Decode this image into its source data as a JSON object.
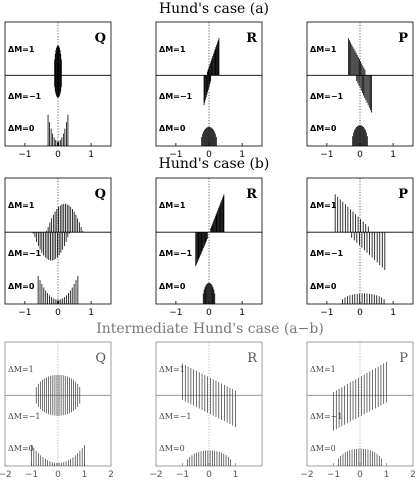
{
  "figure": {
    "row_titles": [
      "Hund's case (a)",
      "Hund's case (b)",
      "Intermediate Hund's case (a−b)"
    ],
    "dm_labels": [
      "ΔM=1",
      "ΔM=−1",
      "ΔM=0"
    ]
  },
  "chart_data": [
    {
      "type": "bar",
      "row": 0,
      "col": 0,
      "branch": "Q",
      "xlim": [
        -1.6,
        1.6
      ],
      "xticks": [
        "−1",
        "0",
        "1"
      ],
      "xtick_values": [
        -1,
        0,
        1
      ],
      "series": [
        {
          "name": "ΔM=1",
          "x_range": [
            -0.12,
            0.12
          ],
          "n_lines": 14,
          "shape": "ellipse_top",
          "amplitude": 0.8
        },
        {
          "name": "ΔM=−1",
          "x_range": [
            -0.12,
            0.12
          ],
          "n_lines": 14,
          "shape": "ellipse_bottom",
          "amplitude": 0.6
        },
        {
          "name": "ΔM=0",
          "x_range": [
            -0.3,
            0.3
          ],
          "n_lines": 14,
          "shape": "u_shape",
          "amplitude": 0.9
        }
      ]
    },
    {
      "type": "bar",
      "row": 0,
      "col": 1,
      "branch": "R",
      "xlim": [
        -1.6,
        1.6
      ],
      "xticks": [
        "−1",
        "0",
        "1"
      ],
      "xtick_values": [
        -1,
        0,
        1
      ],
      "series": [
        {
          "name": "ΔM=1",
          "x_range": [
            -0.05,
            0.3
          ],
          "n_lines": 16,
          "shape": "ramp_up",
          "amplitude": 1.0
        },
        {
          "name": "ΔM=−1",
          "x_range": [
            -0.15,
            0.05
          ],
          "n_lines": 10,
          "shape": "ramp_down",
          "amplitude": 0.8
        },
        {
          "name": "ΔM=0",
          "x_range": [
            -0.25,
            0.25
          ],
          "n_lines": 18,
          "shape": "arch",
          "amplitude": 0.55
        }
      ]
    },
    {
      "type": "bar",
      "row": 0,
      "col": 2,
      "branch": "P",
      "xlim": [
        -1.6,
        1.6
      ],
      "xticks": [
        "−1",
        "0",
        "1"
      ],
      "xtick_values": [
        -1,
        0,
        1
      ],
      "series": [
        {
          "name": "ΔM=1",
          "x_range": [
            -0.35,
            0.15
          ],
          "n_lines": 16,
          "shape": "decline",
          "amplitude": 1.0
        },
        {
          "name": "ΔM=−1",
          "x_range": [
            -0.1,
            0.35
          ],
          "n_lines": 14,
          "shape": "incline_down",
          "amplitude": 1.0
        },
        {
          "name": "ΔM=0",
          "x_range": [
            -0.25,
            0.25
          ],
          "n_lines": 18,
          "shape": "arch",
          "amplitude": 0.6
        }
      ]
    },
    {
      "type": "bar",
      "row": 1,
      "col": 0,
      "branch": "Q",
      "xlim": [
        -1.6,
        1.6
      ],
      "xticks": [
        "−1",
        "0",
        "1"
      ],
      "xtick_values": [
        -1,
        0,
        1
      ],
      "series": [
        {
          "name": "ΔM=1",
          "x_range": [
            -0.35,
            0.75
          ],
          "n_lines": 22,
          "shape": "arch_shift_right",
          "amplitude": 0.75
        },
        {
          "name": "ΔM=−1",
          "x_range": [
            -0.75,
            0.35
          ],
          "n_lines": 22,
          "shape": "arch_shift_left",
          "amplitude": 0.75
        },
        {
          "name": "ΔM=0",
          "x_range": [
            -0.6,
            0.6
          ],
          "n_lines": 22,
          "shape": "u_shape",
          "amplitude": 0.8
        }
      ]
    },
    {
      "type": "bar",
      "row": 1,
      "col": 1,
      "branch": "R",
      "xlim": [
        -1.6,
        1.6
      ],
      "xticks": [
        "−1",
        "0",
        "1"
      ],
      "xtick_values": [
        -1,
        0,
        1
      ],
      "series": [
        {
          "name": "ΔM=1",
          "x_range": [
            0.05,
            0.45
          ],
          "n_lines": 18,
          "shape": "ramp_up",
          "amplitude": 1.0
        },
        {
          "name": "ΔM=−1",
          "x_range": [
            -0.4,
            -0.05
          ],
          "n_lines": 16,
          "shape": "ramp_down",
          "amplitude": 0.9
        },
        {
          "name": "ΔM=0",
          "x_range": [
            -0.2,
            0.2
          ],
          "n_lines": 16,
          "shape": "arch",
          "amplitude": 0.6
        }
      ]
    },
    {
      "type": "bar",
      "row": 1,
      "col": 2,
      "branch": "P",
      "xlim": [
        -1.6,
        1.6
      ],
      "xticks": [
        "−1",
        "0",
        "1"
      ],
      "xtick_values": [
        -1,
        0,
        1
      ],
      "series": [
        {
          "name": "ΔM=1",
          "x_range": [
            -0.75,
            0.25
          ],
          "n_lines": 14,
          "shape": "decline",
          "amplitude": 1.0
        },
        {
          "name": "ΔM=−1",
          "x_range": [
            -0.25,
            0.75
          ],
          "n_lines": 14,
          "shape": "incline_down",
          "amplitude": 1.0
        },
        {
          "name": "ΔM=0",
          "x_range": [
            -0.6,
            0.8
          ],
          "n_lines": 20,
          "shape": "arch",
          "amplitude": 0.3
        }
      ]
    },
    {
      "type": "bar",
      "row": 2,
      "col": 0,
      "branch": "Q",
      "xlim": [
        -2,
        2
      ],
      "xticks": [
        "−2",
        "−1",
        "0",
        "1",
        "2"
      ],
      "xtick_values": [
        -2,
        -1,
        0,
        1,
        2
      ],
      "series": [
        {
          "name": "ΔM=1",
          "x_range": [
            -0.9,
            0.9
          ],
          "n_lines": 24,
          "shape": "arch",
          "amplitude": 0.55
        },
        {
          "name": "ΔM=−1",
          "x_range": [
            -0.9,
            0.9
          ],
          "n_lines": 24,
          "shape": "arch",
          "amplitude": 0.55
        },
        {
          "name": "ΔM=0",
          "x_range": [
            -1.0,
            1.0
          ],
          "n_lines": 24,
          "shape": "u_shape",
          "amplitude": 0.6
        }
      ]
    },
    {
      "type": "bar",
      "row": 2,
      "col": 1,
      "branch": "R",
      "xlim": [
        -2,
        2
      ],
      "xticks": [
        "−2",
        "−1",
        "0",
        "1"
      ],
      "xtick_values": [
        -2,
        -1,
        0,
        1
      ],
      "series": [
        {
          "name": "ΔM=1",
          "x_range": [
            -1.0,
            1.0
          ],
          "n_lines": 20,
          "shape": "decline",
          "amplitude": 0.85
        },
        {
          "name": "ΔM=−1",
          "x_range": [
            -1.0,
            1.0
          ],
          "n_lines": 20,
          "shape": "incline_down",
          "amplitude": 0.85
        },
        {
          "name": "ΔM=0",
          "x_range": [
            -0.9,
            0.9
          ],
          "n_lines": 22,
          "shape": "arch",
          "amplitude": 0.45
        }
      ]
    },
    {
      "type": "bar",
      "row": 2,
      "col": 2,
      "branch": "P",
      "xlim": [
        -2,
        2
      ],
      "xticks": [
        "−2",
        "−1",
        "0",
        "1",
        "2"
      ],
      "xtick_values": [
        -2,
        -1,
        0,
        1,
        2
      ],
      "series": [
        {
          "name": "ΔM=1",
          "x_range": [
            -1.0,
            1.0
          ],
          "n_lines": 20,
          "shape": "ramp_up",
          "amplitude": 0.9
        },
        {
          "name": "ΔM=−1",
          "x_range": [
            -1.0,
            1.0
          ],
          "n_lines": 20,
          "shape": "ramp_down",
          "amplitude": 0.95
        },
        {
          "name": "ΔM=0",
          "x_range": [
            -0.9,
            0.9
          ],
          "n_lines": 22,
          "shape": "arch",
          "amplitude": 0.5
        }
      ]
    }
  ]
}
